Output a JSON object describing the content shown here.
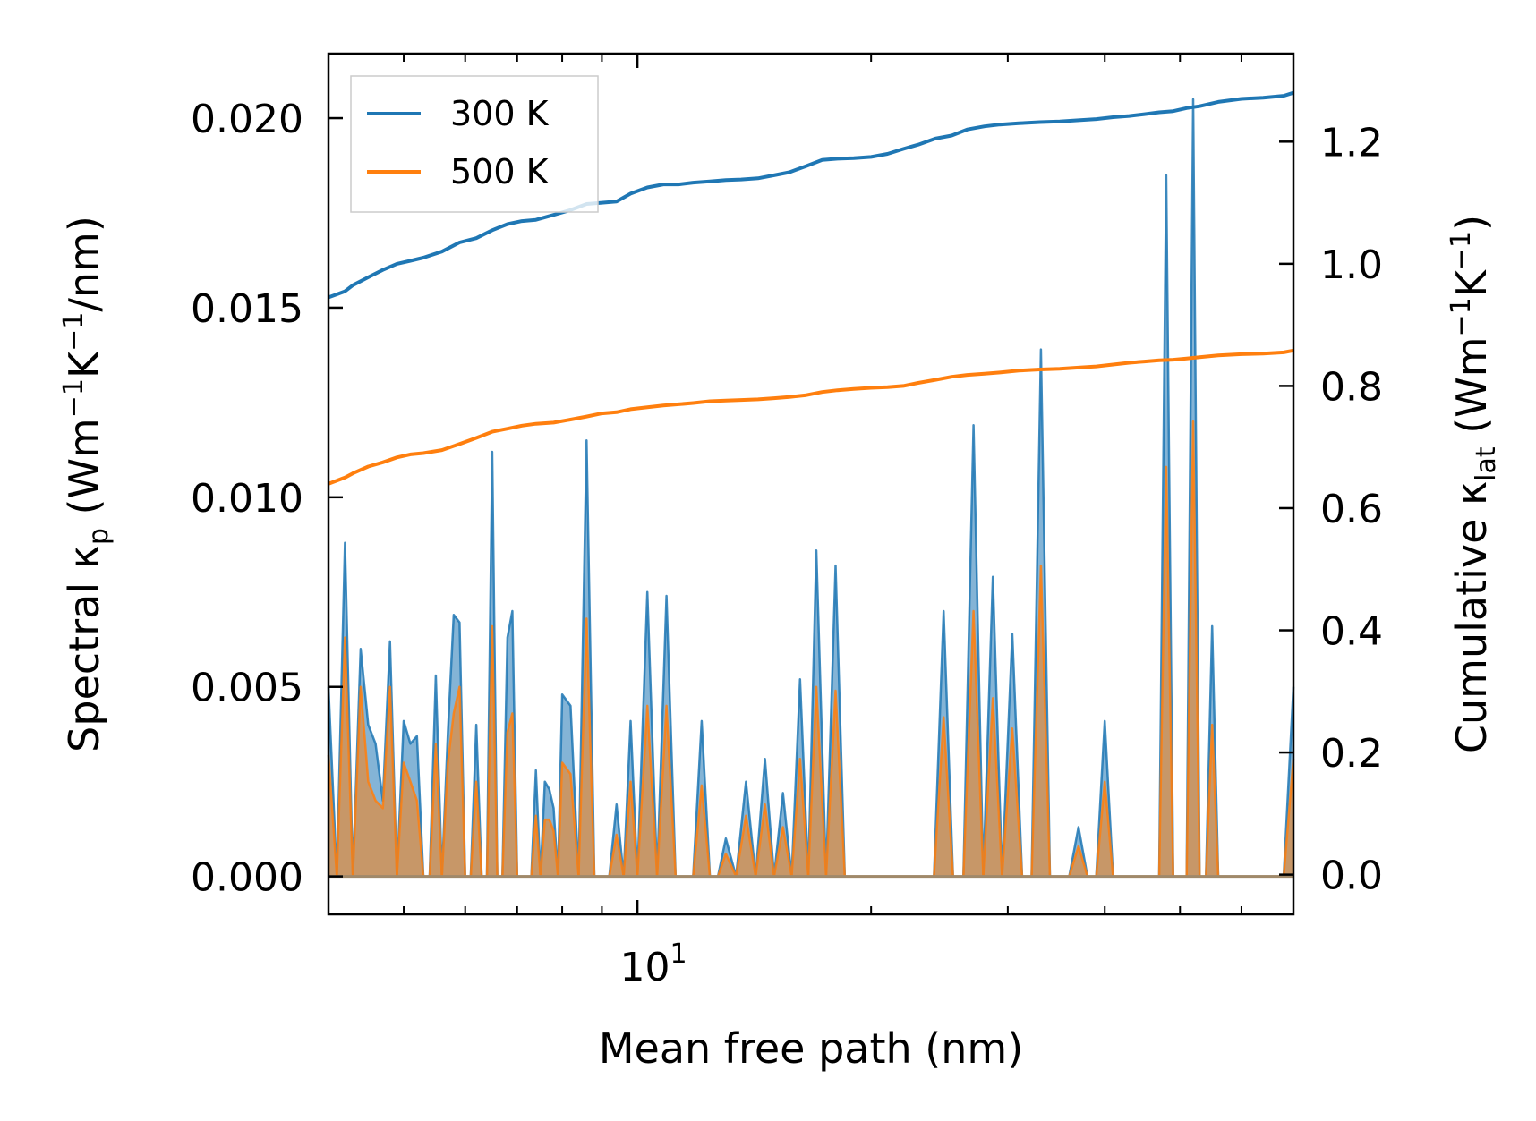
{
  "chart_data": {
    "type": "line",
    "xscale": "log",
    "xlabel": "Mean free path (nm)",
    "xlim": [
      4.0,
      70.0
    ],
    "x_tick_labels": [
      {
        "value": 10,
        "base": "10",
        "exp": "1"
      }
    ],
    "left_axis": {
      "label_prefix": "Spectral κ",
      "label_sub": "p",
      "label_units_open": " (Wm",
      "label_sup1": "−1",
      "label_mid": "K",
      "label_sup2": "−1",
      "label_units_close": "/nm)",
      "ylim": [
        -0.001,
        0.0217
      ],
      "ticks": [
        "0.000",
        "0.005",
        "0.010",
        "0.015",
        "0.020"
      ]
    },
    "right_axis": {
      "label_prefix": "Cumulative κ",
      "label_sub": "lat",
      "label_units_open": " (Wm",
      "label_sup1": "−1",
      "label_mid": "K",
      "label_sup2": "−1",
      "label_units_close": ")",
      "ylim": [
        -0.065,
        1.344
      ],
      "ticks": [
        "0.0",
        "0.2",
        "0.4",
        "0.6",
        "0.8",
        "1.0",
        "1.2"
      ]
    },
    "legend": {
      "location": "upper-left",
      "entries": [
        {
          "label": "300 K",
          "color": "#1f77b4"
        },
        {
          "label": "500 K",
          "color": "#ff7f0e"
        }
      ]
    },
    "series": [
      {
        "name": "300 K cumulative",
        "axis": "right",
        "color": "#1f77b4",
        "x": [
          4.0,
          4.1,
          4.2,
          4.3,
          4.5,
          4.7,
          4.9,
          5.1,
          5.3,
          5.6,
          5.9,
          6.2,
          6.5,
          6.8,
          7.1,
          7.4,
          7.8,
          8.2,
          8.6,
          9.0,
          9.4,
          9.8,
          10.3,
          10.8,
          11.3,
          11.8,
          12.4,
          13.0,
          13.6,
          14.3,
          15.0,
          15.7,
          16.5,
          17.3,
          18.1,
          19.0,
          20.0,
          21.0,
          22.0,
          23.0,
          24.2,
          25.4,
          26.6,
          28.0,
          29.3,
          31.0,
          33.0,
          35.0,
          37.0,
          39.0,
          41.0,
          43.0,
          45.0,
          47.0,
          49.0,
          51.0,
          53.0,
          56.0,
          60.0,
          64.0,
          68.0,
          70.0
        ],
        "values": [
          0.945,
          0.95,
          0.955,
          0.965,
          0.978,
          0.99,
          1.0,
          1.005,
          1.01,
          1.02,
          1.035,
          1.042,
          1.055,
          1.065,
          1.07,
          1.072,
          1.08,
          1.088,
          1.098,
          1.1,
          1.102,
          1.115,
          1.125,
          1.13,
          1.13,
          1.133,
          1.135,
          1.137,
          1.138,
          1.14,
          1.145,
          1.15,
          1.16,
          1.17,
          1.172,
          1.173,
          1.175,
          1.18,
          1.188,
          1.195,
          1.205,
          1.21,
          1.22,
          1.225,
          1.228,
          1.23,
          1.232,
          1.233,
          1.235,
          1.237,
          1.24,
          1.242,
          1.245,
          1.248,
          1.25,
          1.255,
          1.258,
          1.265,
          1.27,
          1.272,
          1.275,
          1.28
        ]
      },
      {
        "name": "500 K cumulative",
        "axis": "right",
        "color": "#ff7f0e",
        "x": [
          4.0,
          4.1,
          4.2,
          4.3,
          4.5,
          4.7,
          4.9,
          5.1,
          5.3,
          5.6,
          5.9,
          6.2,
          6.5,
          6.8,
          7.1,
          7.4,
          7.8,
          8.2,
          8.6,
          9.0,
          9.4,
          9.8,
          10.3,
          10.8,
          11.3,
          11.8,
          12.4,
          13.0,
          13.6,
          14.3,
          15.0,
          15.7,
          16.5,
          17.3,
          18.1,
          19.0,
          20.0,
          21.0,
          22.0,
          23.0,
          24.2,
          25.4,
          26.6,
          28.0,
          29.3,
          31.0,
          33.0,
          35.0,
          37.0,
          39.0,
          41.0,
          43.0,
          45.0,
          47.0,
          49.0,
          51.0,
          53.0,
          56.0,
          60.0,
          64.0,
          68.0,
          70.0
        ],
        "values": [
          0.64,
          0.645,
          0.65,
          0.657,
          0.668,
          0.675,
          0.683,
          0.688,
          0.69,
          0.695,
          0.705,
          0.715,
          0.725,
          0.73,
          0.735,
          0.738,
          0.74,
          0.745,
          0.75,
          0.755,
          0.757,
          0.762,
          0.765,
          0.768,
          0.77,
          0.772,
          0.775,
          0.776,
          0.777,
          0.778,
          0.78,
          0.782,
          0.785,
          0.79,
          0.793,
          0.795,
          0.797,
          0.798,
          0.8,
          0.805,
          0.81,
          0.815,
          0.818,
          0.82,
          0.822,
          0.825,
          0.827,
          0.828,
          0.83,
          0.832,
          0.835,
          0.838,
          0.84,
          0.842,
          0.843,
          0.845,
          0.847,
          0.85,
          0.852,
          0.853,
          0.855,
          0.858
        ]
      },
      {
        "name": "300 K spectral",
        "axis": "left",
        "color": "#1f77b4",
        "fill": true,
        "x": [
          4.0,
          4.1,
          4.2,
          4.3,
          4.4,
          4.5,
          4.6,
          4.7,
          4.8,
          4.9,
          5.0,
          5.1,
          5.2,
          5.3,
          5.4,
          5.5,
          5.6,
          5.7,
          5.8,
          5.9,
          6.0,
          6.1,
          6.2,
          6.3,
          6.4,
          6.5,
          6.6,
          6.7,
          6.8,
          6.9,
          7.0,
          7.1,
          7.2,
          7.3,
          7.4,
          7.5,
          7.6,
          7.7,
          7.8,
          7.9,
          8.0,
          8.2,
          8.4,
          8.6,
          8.8,
          9.0,
          9.2,
          9.4,
          9.6,
          9.8,
          10.0,
          10.3,
          10.6,
          10.9,
          11.2,
          11.5,
          11.8,
          12.1,
          12.4,
          12.7,
          13.0,
          13.4,
          13.8,
          14.2,
          14.6,
          15.0,
          15.4,
          15.8,
          16.2,
          16.6,
          17.0,
          17.5,
          18.0,
          18.5,
          19.0,
          19.6,
          20.2,
          20.8,
          21.4,
          22.0,
          22.7,
          23.4,
          24.1,
          24.8,
          25.5,
          26.3,
          27.1,
          27.9,
          28.7,
          29.5,
          30.4,
          31.3,
          32.2,
          33.1,
          34.0,
          35.0,
          36.0,
          37.0,
          38.0,
          39.0,
          40.0,
          41.0,
          42.0,
          43.0,
          44.0,
          45.0,
          46.0,
          47.0,
          48.0,
          49.0,
          50.0,
          51.0,
          52.0,
          53.0,
          54.0,
          55.0,
          56.0,
          58.0,
          60.0,
          62.0,
          64.0,
          66.0,
          68.0,
          70.0
        ],
        "values": [
          0.005,
          0.0,
          0.0088,
          0.0,
          0.006,
          0.004,
          0.0035,
          0.002,
          0.0062,
          0.0,
          0.0041,
          0.0035,
          0.0037,
          0.0,
          0.0,
          0.0053,
          0.0,
          0.0038,
          0.0069,
          0.0067,
          0.0,
          0.0,
          0.004,
          0.0,
          0.0,
          0.0112,
          0.0,
          0.0,
          0.0063,
          0.007,
          0.0,
          0.0,
          0.0,
          0.0,
          0.0028,
          0.0,
          0.0025,
          0.0023,
          0.0018,
          0.0,
          0.0048,
          0.0045,
          0.0,
          0.0115,
          0.0,
          0.0,
          0.0,
          0.0019,
          0.0,
          0.0041,
          0.0,
          0.0075,
          0.0,
          0.0074,
          0.0,
          0.0,
          0.0,
          0.0041,
          0.0,
          0.0,
          0.001,
          0.0,
          0.0025,
          0.0,
          0.0031,
          0.0,
          0.0022,
          0.0,
          0.0052,
          0.0,
          0.0086,
          0.0,
          0.0082,
          0.0,
          0.0,
          0.0,
          0.0,
          0.0,
          0.0,
          0.0,
          0.0,
          0.0,
          0.0,
          0.007,
          0.0,
          0.0,
          0.0119,
          0.0,
          0.0079,
          0.0,
          0.0064,
          0.0,
          0.0,
          0.0139,
          0.0,
          0.0,
          0.0,
          0.0013,
          0.0,
          0.0,
          0.0041,
          0.0,
          0.0,
          0.0,
          0.0,
          0.0,
          0.0,
          0.0,
          0.0185,
          0.0,
          0.0,
          0.0,
          0.0205,
          0.0,
          0.0,
          0.0066,
          0.0,
          0.0,
          0.0,
          0.0,
          0.0,
          0.0,
          0.0,
          0.005
        ]
      },
      {
        "name": "500 K spectral",
        "axis": "left",
        "color": "#ff7f0e",
        "fill": true,
        "x": [
          4.0,
          4.1,
          4.2,
          4.3,
          4.4,
          4.5,
          4.6,
          4.7,
          4.8,
          4.9,
          5.0,
          5.1,
          5.2,
          5.3,
          5.4,
          5.5,
          5.6,
          5.7,
          5.8,
          5.9,
          6.0,
          6.1,
          6.2,
          6.3,
          6.4,
          6.5,
          6.6,
          6.7,
          6.8,
          6.9,
          7.0,
          7.1,
          7.2,
          7.3,
          7.4,
          7.5,
          7.6,
          7.7,
          7.8,
          7.9,
          8.0,
          8.2,
          8.4,
          8.6,
          8.8,
          9.0,
          9.2,
          9.4,
          9.6,
          9.8,
          10.0,
          10.3,
          10.6,
          10.9,
          11.2,
          11.5,
          11.8,
          12.1,
          12.4,
          12.7,
          13.0,
          13.4,
          13.8,
          14.2,
          14.6,
          15.0,
          15.4,
          15.8,
          16.2,
          16.6,
          17.0,
          17.5,
          18.0,
          18.5,
          19.0,
          19.6,
          20.2,
          20.8,
          21.4,
          22.0,
          22.7,
          23.4,
          24.1,
          24.8,
          25.5,
          26.3,
          27.1,
          27.9,
          28.7,
          29.5,
          30.4,
          31.3,
          32.2,
          33.1,
          34.0,
          35.0,
          36.0,
          37.0,
          38.0,
          39.0,
          40.0,
          41.0,
          42.0,
          43.0,
          44.0,
          45.0,
          46.0,
          47.0,
          48.0,
          49.0,
          50.0,
          51.0,
          52.0,
          53.0,
          54.0,
          55.0,
          56.0,
          58.0,
          60.0,
          62.0,
          64.0,
          66.0,
          68.0,
          70.0
        ],
        "values": [
          0.0032,
          0.0,
          0.0063,
          0.0,
          0.005,
          0.0025,
          0.002,
          0.0018,
          0.005,
          0.0,
          0.003,
          0.0025,
          0.002,
          0.0,
          0.0,
          0.0035,
          0.0,
          0.003,
          0.0043,
          0.005,
          0.0,
          0.0,
          0.0025,
          0.0,
          0.0,
          0.0066,
          0.0,
          0.0,
          0.0038,
          0.0043,
          0.0,
          0.0,
          0.0,
          0.0,
          0.0016,
          0.0,
          0.0015,
          0.0015,
          0.0012,
          0.0,
          0.003,
          0.0027,
          0.0,
          0.0068,
          0.0,
          0.0,
          0.0,
          0.0011,
          0.0,
          0.0025,
          0.0,
          0.0045,
          0.0,
          0.0045,
          0.0,
          0.0,
          0.0,
          0.0024,
          0.0,
          0.0,
          0.0006,
          0.0,
          0.0016,
          0.0,
          0.0019,
          0.0,
          0.0013,
          0.0,
          0.0031,
          0.0,
          0.005,
          0.0,
          0.0049,
          0.0,
          0.0,
          0.0,
          0.0,
          0.0,
          0.0,
          0.0,
          0.0,
          0.0,
          0.0,
          0.0042,
          0.0,
          0.0,
          0.007,
          0.0,
          0.0047,
          0.0,
          0.0039,
          0.0,
          0.0,
          0.0082,
          0.0,
          0.0,
          0.0,
          0.0008,
          0.0,
          0.0,
          0.0025,
          0.0,
          0.0,
          0.0,
          0.0,
          0.0,
          0.0,
          0.0,
          0.0108,
          0.0,
          0.0,
          0.0,
          0.012,
          0.0,
          0.0,
          0.004,
          0.0,
          0.0,
          0.0,
          0.0,
          0.0,
          0.0,
          0.0,
          0.0031
        ]
      }
    ]
  }
}
